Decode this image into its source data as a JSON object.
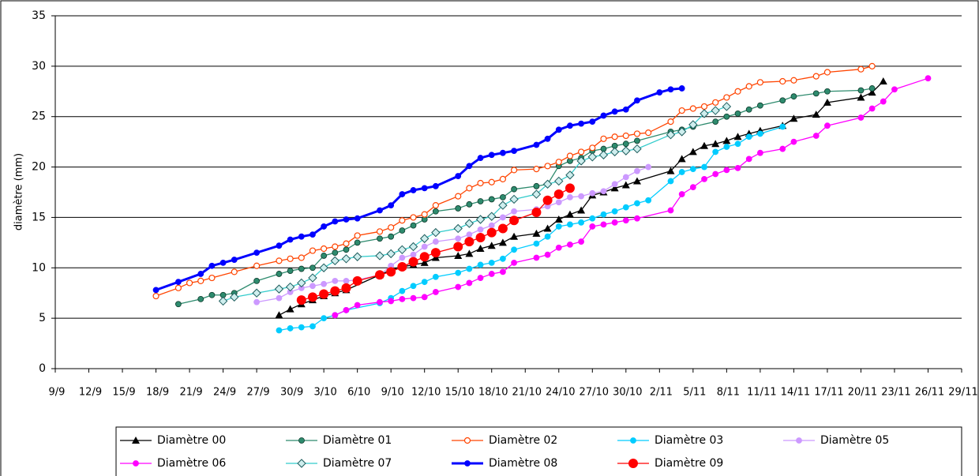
{
  "chart_data": {
    "type": "line",
    "y_label": "diamètre (mm)",
    "ylim": [
      0,
      35
    ],
    "yticks": [
      0,
      5,
      10,
      15,
      20,
      25,
      30,
      35
    ],
    "grid": true,
    "xlim": [
      "9/9",
      "29/11"
    ],
    "xticks": [
      "9/9",
      "12/9",
      "15/9",
      "18/9",
      "21/9",
      "24/9",
      "27/9",
      "30/9",
      "3/10",
      "6/10",
      "9/10",
      "12/10",
      "15/10",
      "18/10",
      "21/10",
      "24/10",
      "27/10",
      "30/10",
      "2/11",
      "5/11",
      "8/11",
      "11/11",
      "14/11",
      "17/11",
      "20/11",
      "23/11",
      "26/11",
      "29/11"
    ],
    "legend": "bottom",
    "series": [
      {
        "name": "Diamètre 00",
        "color": "#000000",
        "marker": "triangle",
        "x": [
          "29/9",
          "30/9",
          "1/10",
          "2/10",
          "3/10",
          "4/10",
          "5/10",
          "8/10",
          "9/10",
          "10/10",
          "11/10",
          "12/10",
          "13/10",
          "15/10",
          "16/10",
          "17/10",
          "18/10",
          "19/10",
          "20/10",
          "22/10",
          "23/10",
          "24/10",
          "25/10",
          "26/10",
          "27/10",
          "28/10",
          "29/10",
          "30/10",
          "31/10",
          "3/11",
          "4/11",
          "5/11",
          "6/11",
          "7/11",
          "8/11",
          "9/11",
          "10/11",
          "11/11",
          "13/11",
          "14/11",
          "16/11",
          "17/11",
          "20/11",
          "21/11",
          "22/11"
        ],
        "values": [
          5.3,
          5.9,
          6.4,
          6.8,
          7.2,
          7.5,
          7.8,
          9.3,
          9.8,
          10.1,
          10.3,
          10.5,
          11.0,
          11.2,
          11.4,
          11.9,
          12.2,
          12.5,
          13.1,
          13.4,
          13.9,
          14.8,
          15.3,
          15.7,
          17.2,
          17.5,
          17.9,
          18.2,
          18.6,
          19.6,
          20.8,
          21.5,
          22.1,
          22.3,
          22.6,
          23.0,
          23.3,
          23.6,
          24.1,
          24.8,
          25.2,
          26.4,
          26.9,
          27.4,
          28.5
        ]
      },
      {
        "name": "Diamètre 01",
        "color": "#2e8b6e",
        "marker": "circle",
        "x": [
          "20/9",
          "22/9",
          "23/9",
          "24/9",
          "25/9",
          "27/9",
          "29/9",
          "30/9",
          "1/10",
          "2/10",
          "3/10",
          "4/10",
          "5/10",
          "6/10",
          "8/10",
          "9/10",
          "10/10",
          "11/10",
          "12/10",
          "13/10",
          "15/10",
          "16/10",
          "17/10",
          "18/10",
          "19/10",
          "20/10",
          "22/10",
          "23/10",
          "24/10",
          "25/10",
          "26/10",
          "27/10",
          "28/10",
          "29/10",
          "30/10",
          "31/10",
          "3/11",
          "4/11",
          "5/11",
          "7/11",
          "8/11",
          "9/11",
          "10/11",
          "11/11",
          "13/11",
          "14/11",
          "16/11",
          "17/11",
          "20/11",
          "21/11"
        ],
        "values": [
          6.4,
          6.9,
          7.3,
          7.3,
          7.5,
          8.7,
          9.4,
          9.7,
          9.9,
          10.0,
          11.2,
          11.5,
          11.8,
          12.5,
          12.9,
          13.1,
          13.7,
          14.2,
          14.8,
          15.6,
          15.9,
          16.3,
          16.6,
          16.8,
          17.0,
          17.8,
          18.1,
          18.3,
          20.1,
          20.6,
          20.9,
          21.6,
          21.8,
          22.1,
          22.3,
          22.6,
          23.5,
          23.7,
          24.0,
          24.5,
          25.0,
          25.3,
          25.7,
          26.1,
          26.6,
          27.0,
          27.3,
          27.5,
          27.6,
          27.8
        ]
      },
      {
        "name": "Diamètre 02",
        "color": "#ff4400",
        "marker": "open-circle",
        "x": [
          "18/9",
          "20/9",
          "21/9",
          "22/9",
          "23/9",
          "25/9",
          "27/9",
          "29/9",
          "30/9",
          "1/10",
          "2/10",
          "3/10",
          "4/10",
          "5/10",
          "6/10",
          "8/10",
          "9/10",
          "10/10",
          "11/10",
          "12/10",
          "13/10",
          "15/10",
          "16/10",
          "17/10",
          "18/10",
          "19/10",
          "20/10",
          "22/10",
          "23/10",
          "24/10",
          "25/10",
          "26/10",
          "27/10",
          "28/10",
          "29/10",
          "30/10",
          "31/10",
          "1/11",
          "3/11",
          "4/11",
          "5/11",
          "6/11",
          "7/11",
          "8/11",
          "9/11",
          "10/11",
          "11/11",
          "13/11",
          "14/11",
          "16/11",
          "17/11",
          "20/11",
          "21/11"
        ],
        "values": [
          7.2,
          8.0,
          8.5,
          8.7,
          9.0,
          9.6,
          10.2,
          10.7,
          10.9,
          11.0,
          11.7,
          11.9,
          12.1,
          12.4,
          13.2,
          13.6,
          14.0,
          14.7,
          15.0,
          15.3,
          16.2,
          17.1,
          17.9,
          18.4,
          18.5,
          18.8,
          19.7,
          19.8,
          20.1,
          20.5,
          21.1,
          21.5,
          21.9,
          22.8,
          23.0,
          23.1,
          23.3,
          23.4,
          24.5,
          25.6,
          25.8,
          26.0,
          26.4,
          26.9,
          27.5,
          28.0,
          28.4,
          28.5,
          28.6,
          29.0,
          29.4,
          29.7,
          30.0
        ]
      },
      {
        "name": "Diamètre 03",
        "color": "#00ccff",
        "marker": "circle",
        "x": [
          "29/9",
          "30/9",
          "1/10",
          "2/10",
          "3/10",
          "4/10",
          "5/10",
          "8/10",
          "9/10",
          "10/10",
          "11/10",
          "12/10",
          "13/10",
          "15/10",
          "16/10",
          "17/10",
          "18/10",
          "19/10",
          "20/10",
          "22/10",
          "23/10",
          "24/10",
          "25/10",
          "26/10",
          "27/10",
          "28/10",
          "29/10",
          "30/10",
          "31/10",
          "1/11",
          "3/11",
          "4/11",
          "5/11",
          "6/11",
          "7/11",
          "8/11",
          "9/11",
          "10/11",
          "11/11",
          "13/11"
        ],
        "values": [
          3.8,
          4.0,
          4.1,
          4.2,
          5.0,
          5.3,
          5.8,
          6.5,
          7.0,
          7.7,
          8.2,
          8.6,
          9.1,
          9.5,
          9.9,
          10.3,
          10.5,
          10.9,
          11.8,
          12.4,
          13.1,
          14.1,
          14.3,
          14.5,
          14.9,
          15.3,
          15.6,
          16.0,
          16.4,
          16.7,
          18.6,
          19.5,
          19.8,
          20.0,
          21.5,
          22.0,
          22.3,
          23.0,
          23.3,
          24.0
        ]
      },
      {
        "name": "Diamètre 05",
        "color": "#cc99ff",
        "marker": "circle",
        "x": [
          "27/9",
          "29/9",
          "30/9",
          "1/10",
          "2/10",
          "3/10",
          "4/10",
          "5/10",
          "6/10",
          "8/10",
          "9/10",
          "10/10",
          "11/10",
          "12/10",
          "13/10",
          "15/10",
          "16/10",
          "17/10",
          "18/10",
          "19/10",
          "20/10",
          "22/10",
          "23/10",
          "24/10",
          "25/10",
          "26/10",
          "27/10",
          "28/10",
          "29/10",
          "30/10",
          "31/10",
          "1/11"
        ],
        "values": [
          6.6,
          7.0,
          7.6,
          8.0,
          8.2,
          8.4,
          8.7,
          8.7,
          8.8,
          9.3,
          10.2,
          11.0,
          11.3,
          12.1,
          12.6,
          12.9,
          13.3,
          13.8,
          14.2,
          15.0,
          15.6,
          15.8,
          16.1,
          16.5,
          17.0,
          17.1,
          17.4,
          17.6,
          18.3,
          19.0,
          19.6,
          20.0
        ]
      },
      {
        "name": "Diamètre 06",
        "color": "#ff00ff",
        "marker": "circle",
        "x": [
          "4/10",
          "5/10",
          "6/10",
          "8/10",
          "9/10",
          "10/10",
          "11/10",
          "12/10",
          "13/10",
          "15/10",
          "16/10",
          "17/10",
          "18/10",
          "19/10",
          "20/10",
          "22/10",
          "23/10",
          "24/10",
          "25/10",
          "26/10",
          "27/10",
          "28/10",
          "29/10",
          "30/10",
          "31/10",
          "3/11",
          "4/11",
          "5/11",
          "6/11",
          "7/11",
          "8/11",
          "9/11",
          "10/11",
          "11/11",
          "13/11",
          "14/11",
          "16/11",
          "17/11",
          "20/11",
          "21/11",
          "22/11",
          "23/11",
          "26/11"
        ],
        "values": [
          5.3,
          5.8,
          6.3,
          6.6,
          6.7,
          6.9,
          7.0,
          7.1,
          7.6,
          8.1,
          8.5,
          9.0,
          9.4,
          9.6,
          10.5,
          11.0,
          11.3,
          12.0,
          12.3,
          12.6,
          14.1,
          14.3,
          14.5,
          14.7,
          14.9,
          15.7,
          17.3,
          18.0,
          18.8,
          19.3,
          19.7,
          19.9,
          20.8,
          21.4,
          21.8,
          22.5,
          23.1,
          24.1,
          24.9,
          25.8,
          26.5,
          27.7,
          28.8
        ]
      },
      {
        "name": "Diamètre 07",
        "color": "#33cccc",
        "marker": "diamond",
        "x": [
          "24/9",
          "25/9",
          "27/9",
          "29/9",
          "30/9",
          "1/10",
          "2/10",
          "3/10",
          "4/10",
          "5/10",
          "6/10",
          "8/10",
          "9/10",
          "10/10",
          "11/10",
          "12/10",
          "13/10",
          "15/10",
          "16/10",
          "17/10",
          "18/10",
          "19/10",
          "20/10",
          "22/10",
          "23/10",
          "24/10",
          "25/10",
          "26/10",
          "27/10",
          "28/10",
          "29/10",
          "30/10",
          "31/10",
          "3/11",
          "4/11",
          "5/11",
          "6/11",
          "7/11",
          "8/11"
        ],
        "values": [
          6.7,
          7.1,
          7.5,
          7.9,
          8.1,
          8.5,
          9.0,
          10.0,
          10.7,
          10.9,
          11.1,
          11.2,
          11.4,
          11.8,
          12.1,
          12.9,
          13.5,
          13.9,
          14.4,
          14.8,
          15.1,
          16.2,
          16.8,
          17.3,
          18.3,
          18.6,
          19.2,
          20.6,
          21.0,
          21.2,
          21.5,
          21.6,
          21.8,
          23.2,
          23.5,
          24.2,
          25.3,
          25.6,
          26.0
        ]
      },
      {
        "name": "Diamètre 08",
        "color": "#0000ff",
        "marker": "circle",
        "line": "heavy",
        "x": [
          "18/9",
          "20/9",
          "22/9",
          "23/9",
          "24/9",
          "25/9",
          "27/9",
          "29/9",
          "30/9",
          "1/10",
          "2/10",
          "3/10",
          "4/10",
          "5/10",
          "6/10",
          "8/10",
          "9/10",
          "10/10",
          "11/10",
          "12/10",
          "13/10",
          "15/10",
          "16/10",
          "17/10",
          "18/10",
          "19/10",
          "20/10",
          "22/10",
          "23/10",
          "24/10",
          "25/10",
          "26/10",
          "27/10",
          "28/10",
          "29/10",
          "30/10",
          "31/10",
          "2/11",
          "3/11",
          "4/11"
        ],
        "values": [
          7.8,
          8.6,
          9.4,
          10.2,
          10.5,
          10.8,
          11.5,
          12.2,
          12.8,
          13.1,
          13.3,
          14.1,
          14.6,
          14.8,
          14.9,
          15.7,
          16.2,
          17.3,
          17.7,
          17.9,
          18.1,
          19.1,
          20.1,
          20.9,
          21.2,
          21.4,
          21.6,
          22.2,
          22.8,
          23.7,
          24.1,
          24.3,
          24.5,
          25.1,
          25.5,
          25.7,
          26.6,
          27.4,
          27.7,
          27.8
        ]
      },
      {
        "name": "Diamètre 09",
        "color": "#ff0000",
        "marker": "large-circle",
        "x": [
          "1/10",
          "2/10",
          "3/10",
          "4/10",
          "5/10",
          "6/10",
          "8/10",
          "9/10",
          "10/10",
          "11/10",
          "12/10",
          "13/10",
          "15/10",
          "16/10",
          "17/10",
          "18/10",
          "19/10",
          "20/10",
          "22/10",
          "23/10",
          "24/10",
          "25/10"
        ],
        "values": [
          6.8,
          7.1,
          7.4,
          7.7,
          8.0,
          8.7,
          9.3,
          9.6,
          10.1,
          10.6,
          11.1,
          11.5,
          12.1,
          12.6,
          13.0,
          13.5,
          13.9,
          14.7,
          15.5,
          16.7,
          17.3,
          17.9
        ]
      }
    ]
  }
}
